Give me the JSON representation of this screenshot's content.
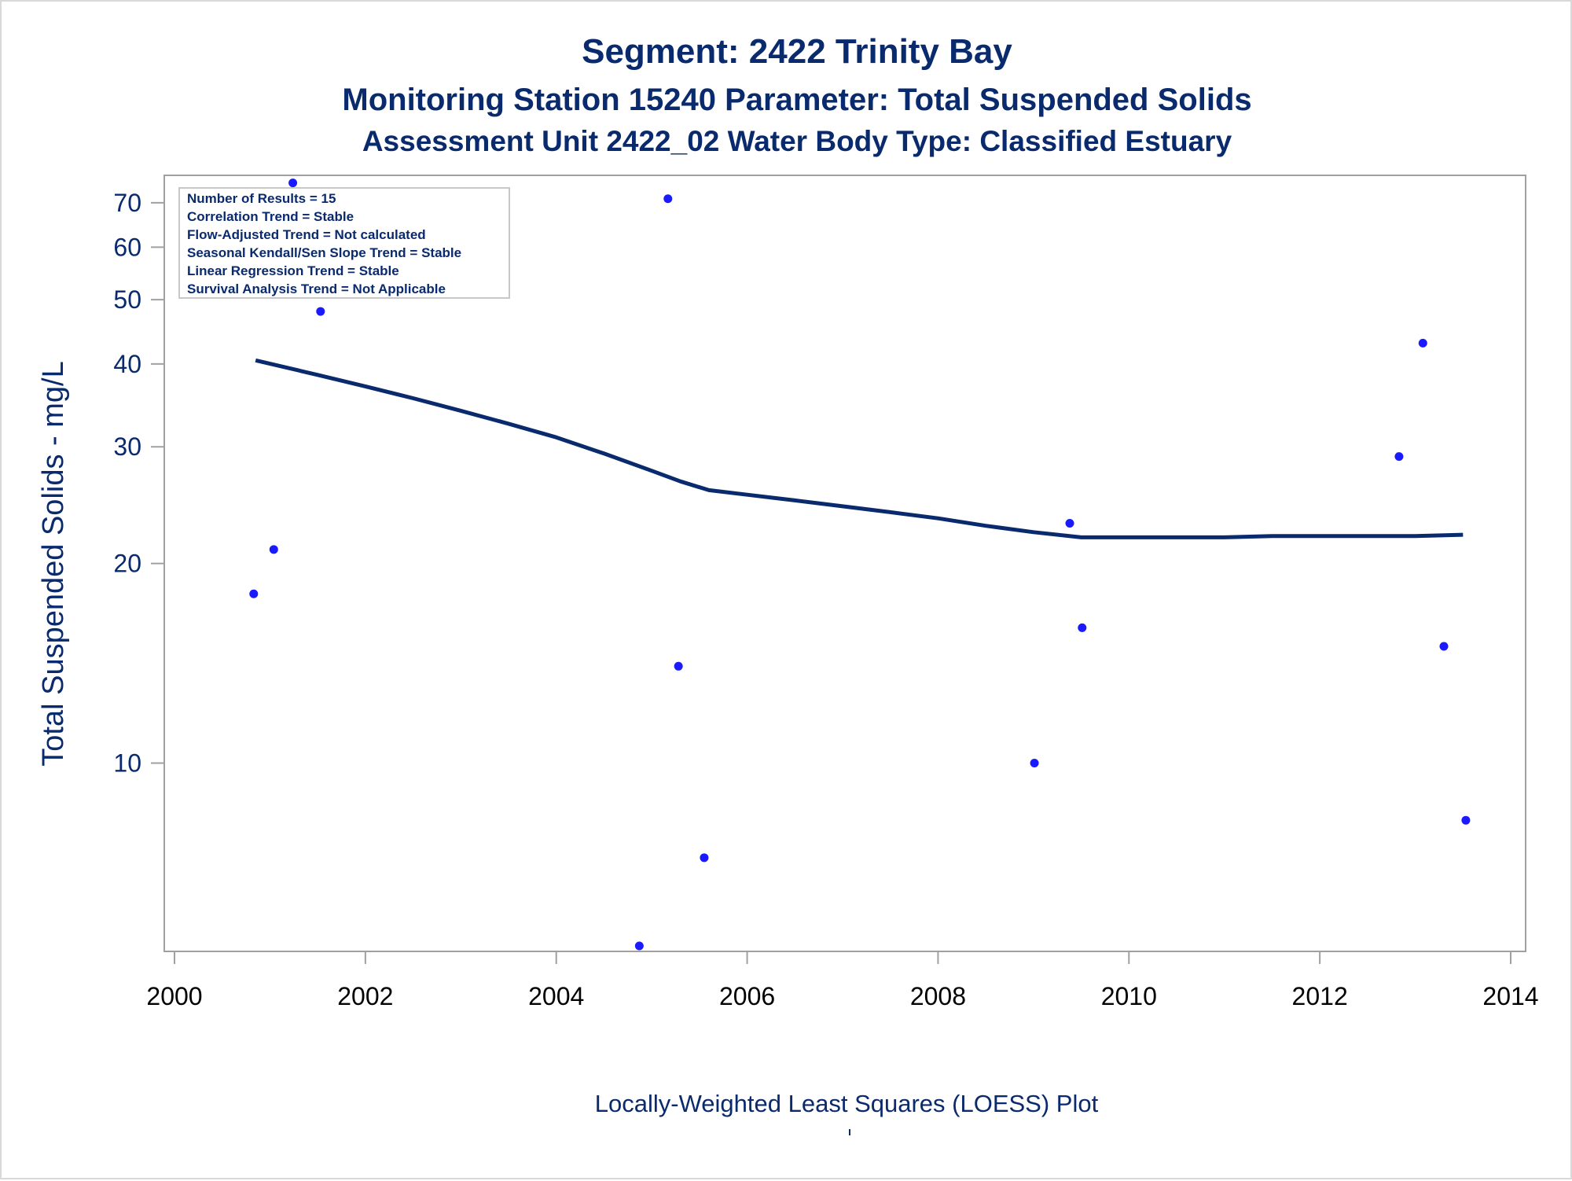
{
  "titles": {
    "line1": "Segment: 2422  Trinity Bay",
    "line2": "Monitoring Station 15240 Parameter: Total Suspended Solids",
    "line3": "Assessment Unit 2422_02   Water Body Type: Classified Estuary"
  },
  "stats_box": [
    "Number of Results = 15",
    "Correlation Trend = Stable",
    "Flow-Adjusted Trend = Not calculated",
    "Seasonal Kendall/Sen Slope Trend = Stable",
    "Linear Regression Trend = Stable",
    "Survival Analysis Trend = Not Applicable"
  ],
  "footnote": "Locally-Weighted Least Squares (LOESS) Plot",
  "colors": {
    "text": "#0a2a6e",
    "points": "#1a1aff",
    "loess_line": "#0a2a6e",
    "axis": "#a0a0a0"
  },
  "chart_data": {
    "type": "scatter",
    "title": "Segment: 2422  Trinity Bay",
    "xlabel": "",
    "ylabel": "Total Suspended Solids - mg/L",
    "y_scale": "log",
    "xlim": [
      2000,
      2014
    ],
    "ylim": [
      5.2,
      77
    ],
    "x_ticks": [
      2000,
      2002,
      2004,
      2006,
      2008,
      2010,
      2012,
      2014
    ],
    "y_ticks": [
      10,
      20,
      30,
      40,
      50,
      60,
      70
    ],
    "grid": false,
    "legend": "none",
    "series": [
      {
        "kind": "scatter",
        "x": [
          2000.83,
          2001.04,
          2001.24,
          2001.53,
          2004.87,
          2005.17,
          2005.28,
          2005.55,
          2009.01,
          2009.38,
          2009.51,
          2012.83,
          2013.08,
          2013.3,
          2013.53
        ],
        "y": [
          18,
          21,
          75,
          48,
          5.3,
          71,
          14,
          7.2,
          10,
          23,
          16,
          29,
          43,
          15,
          8.2
        ]
      },
      {
        "kind": "line",
        "x": [
          2000.85,
          2001.5,
          2002.0,
          2002.5,
          2003.0,
          2003.5,
          2004.0,
          2004.5,
          2005.0,
          2005.3,
          2005.6,
          2006.0,
          2006.5,
          2007.0,
          2007.5,
          2008.0,
          2008.5,
          2009.0,
          2009.5,
          2010.0,
          2010.5,
          2011.0,
          2011.5,
          2012.0,
          2012.5,
          2013.0,
          2013.5
        ],
        "y": [
          40.5,
          38.5,
          37.0,
          35.5,
          34.0,
          32.5,
          31.0,
          29.3,
          27.6,
          26.6,
          25.8,
          25.4,
          24.9,
          24.4,
          23.9,
          23.4,
          22.8,
          22.3,
          21.9,
          21.9,
          21.9,
          21.9,
          22.0,
          22.0,
          22.0,
          22.0,
          22.1
        ]
      }
    ]
  }
}
